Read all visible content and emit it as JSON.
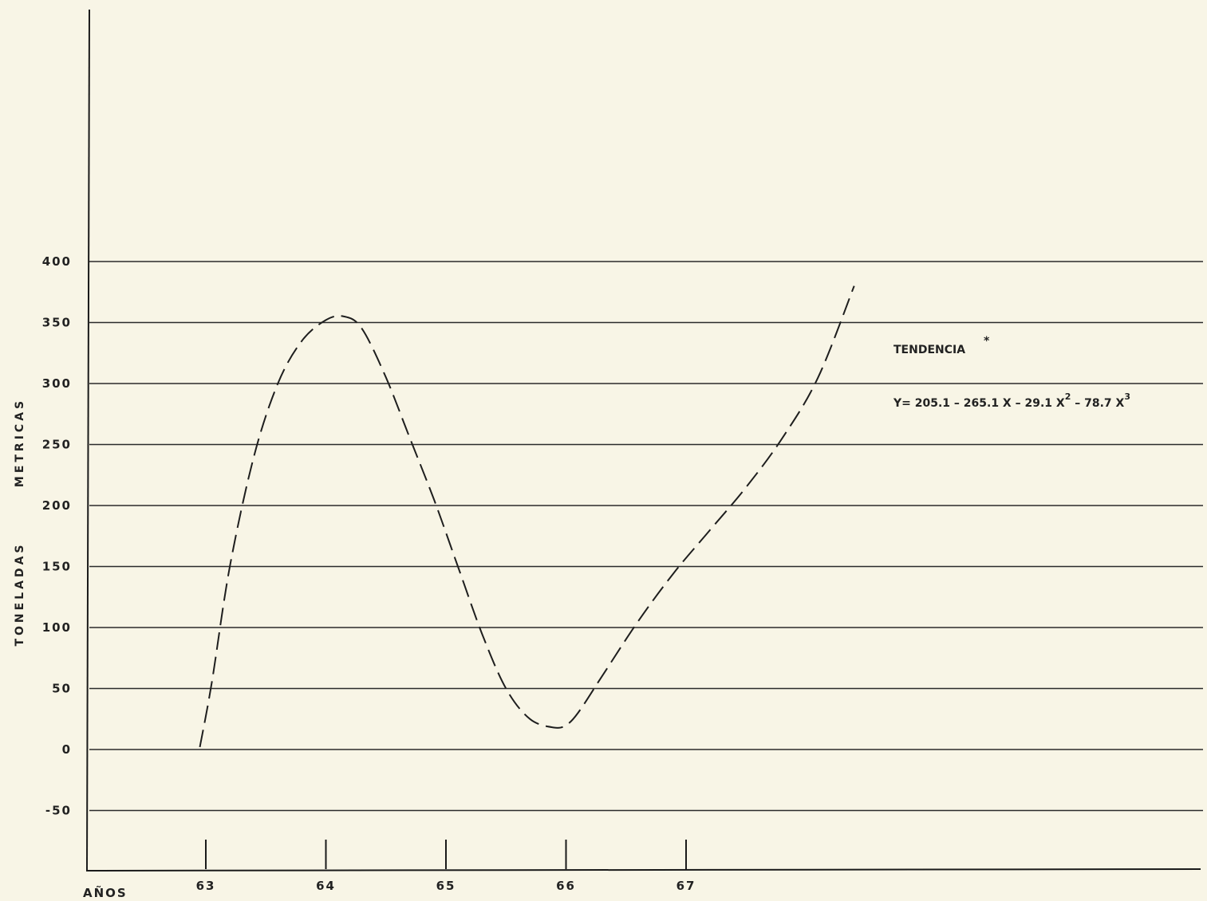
{
  "chart_data": {
    "type": "line",
    "title": "",
    "xlabel": "AÑOS",
    "ylabel_left": "TONELADAS",
    "ylabel_right": "METRICAS",
    "x_ticks": [
      "63",
      "64",
      "65",
      "66",
      "67"
    ],
    "y_ticks": [
      "400",
      "350",
      "300",
      "250",
      "200",
      "150",
      "100",
      "50",
      "0",
      "-50"
    ],
    "ylim": [
      -100,
      400
    ],
    "xlim": [
      62.0,
      71.0
    ],
    "grid": true,
    "series": [
      {
        "name": "TENDENCIA",
        "style": "dashed",
        "x": [
          62.95,
          63.05,
          63.2,
          63.4,
          63.6,
          63.8,
          64.0,
          64.15,
          64.3,
          64.5,
          64.7,
          64.9,
          65.1,
          65.3,
          65.5,
          65.7,
          65.9,
          66.0,
          66.1,
          66.3,
          66.6,
          66.9,
          67.2,
          67.5,
          67.8,
          68.1,
          68.4
        ],
        "values": [
          2,
          55,
          150,
          240,
          300,
          335,
          352,
          355,
          345,
          305,
          255,
          205,
          150,
          95,
          50,
          25,
          18,
          20,
          30,
          60,
          105,
          145,
          180,
          215,
          255,
          305,
          380
        ]
      }
    ],
    "annotation": {
      "label": "TENDENCIA",
      "label_mark": "*",
      "formula_main": "Y= 205.1 – 265.1 X – 29.1 X",
      "formula_exp1": "2",
      "formula_tail": " – 78.7 X",
      "formula_exp2": "3"
    }
  }
}
